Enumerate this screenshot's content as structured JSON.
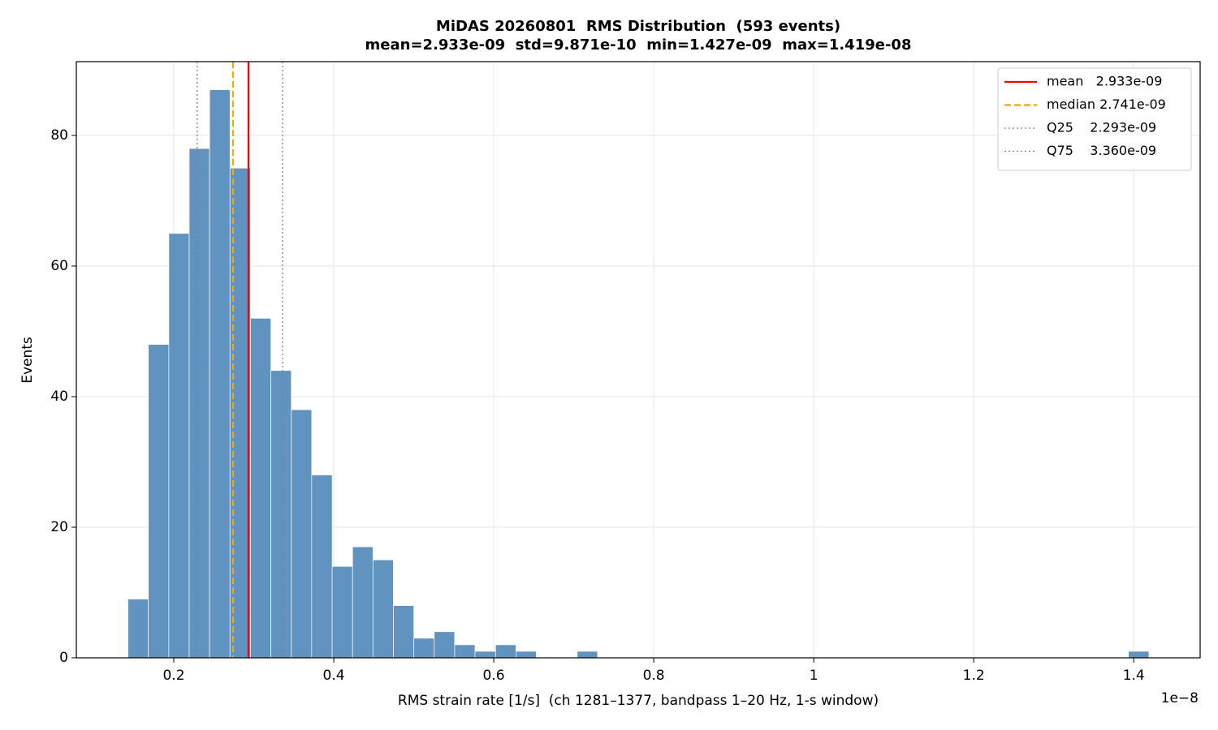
{
  "chart_data": {
    "type": "histogram",
    "title": "MiDAS 20260801  RMS Distribution  (593 events)",
    "subtitle": "mean=2.933e-09  std=9.871e-10  min=1.427e-09  max=1.419e-08",
    "x_label": "RMS strain rate [1/s]  (ch 1281–1377, bandpass 1–20 Hz, 1-s window)",
    "y_label": "Events",
    "x_offset_label": "1e−8",
    "bins": [
      0.1427,
      0.1682,
      0.1938,
      0.2193,
      0.2448,
      0.2703,
      0.2959,
      0.3214,
      0.3469,
      0.3724,
      0.398,
      0.4235,
      0.449,
      0.4745,
      0.5001,
      0.5256,
      0.5511,
      0.5766,
      0.6022,
      0.6277,
      0.6532,
      0.6787,
      0.7043,
      0.7298,
      0.7553,
      0.7808,
      0.8064,
      0.8319,
      0.8574,
      0.8829,
      0.9085,
      0.934,
      0.9595,
      0.985,
      1.0106,
      1.0361,
      1.0616,
      1.0871,
      1.1127,
      1.1382,
      1.1637,
      1.1892,
      1.2148,
      1.2403,
      1.2658,
      1.2913,
      1.3169,
      1.3424,
      1.3679,
      1.3934,
      1.419
    ],
    "values": [
      9,
      48,
      65,
      78,
      87,
      75,
      52,
      44,
      38,
      28,
      14,
      17,
      15,
      8,
      3,
      4,
      2,
      1,
      2,
      1,
      0,
      0,
      1,
      0,
      0,
      0,
      0,
      0,
      0,
      0,
      0,
      0,
      0,
      0,
      0,
      0,
      0,
      0,
      0,
      0,
      0,
      0,
      0,
      0,
      0,
      0,
      0,
      0,
      0,
      1
    ],
    "color": "#6193c1",
    "vlines": [
      {
        "label": "mean   2.933e-09",
        "value": 0.2933,
        "color": "#ff0000",
        "style": "solid"
      },
      {
        "label": "median 2.741e-09",
        "value": 0.2741,
        "color": "#ffa500",
        "style": "dashed"
      },
      {
        "label": "Q25    2.293e-09",
        "value": 0.2293,
        "color": "#808080",
        "style": "dotted"
      },
      {
        "label": "Q75    3.360e-09",
        "value": 0.336,
        "color": "#808080",
        "style": "dotted"
      }
    ],
    "xlim": [
      0.0782,
      1.483
    ],
    "ylim": [
      0,
      91.3
    ],
    "xticks": [
      0.2,
      0.4,
      0.6,
      0.8,
      1.0,
      1.2,
      1.4
    ],
    "yticks": [
      0,
      20,
      40,
      60,
      80
    ],
    "grid": true,
    "legend": "upper right"
  }
}
